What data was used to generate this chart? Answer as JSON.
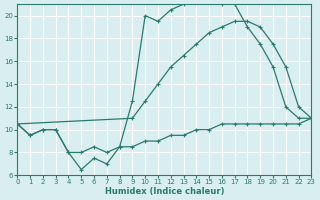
{
  "xlabel": "Humidex (Indice chaleur)",
  "xlim": [
    0,
    23
  ],
  "ylim": [
    6,
    21
  ],
  "yticks": [
    6,
    8,
    10,
    12,
    14,
    16,
    18,
    20
  ],
  "xticks": [
    0,
    1,
    2,
    3,
    4,
    5,
    6,
    7,
    8,
    9,
    10,
    11,
    12,
    13,
    14,
    15,
    16,
    17,
    18,
    19,
    20,
    21,
    22,
    23
  ],
  "line_color": "#2a7a6f",
  "bg_color": "#d8eef0",
  "grid_color": "#ffffff",
  "line1_x": [
    0,
    1,
    2,
    3,
    4,
    5,
    6,
    7,
    8,
    9,
    10,
    11,
    12,
    13,
    14,
    15,
    16,
    17,
    18,
    19,
    20,
    21,
    22,
    23
  ],
  "line1_y": [
    10.5,
    9.5,
    10.0,
    10.0,
    8.0,
    6.5,
    7.5,
    7.0,
    8.5,
    12.5,
    20.0,
    19.5,
    20.5,
    21.0,
    21.5,
    21.5,
    21.0,
    21.0,
    19.0,
    17.5,
    15.5,
    12.0,
    11.0,
    11.0
  ],
  "line2_x": [
    0,
    9,
    10,
    11,
    12,
    13,
    14,
    15,
    16,
    17,
    18,
    19,
    20,
    21,
    22,
    23
  ],
  "line2_y": [
    10.5,
    11.0,
    12.5,
    14.0,
    15.5,
    16.5,
    17.5,
    18.5,
    19.0,
    19.5,
    19.5,
    19.0,
    17.5,
    15.5,
    12.0,
    11.0
  ],
  "line3_x": [
    0,
    1,
    2,
    3,
    4,
    5,
    6,
    7,
    8,
    9,
    10,
    11,
    12,
    13,
    14,
    15,
    16,
    17,
    18,
    19,
    20,
    21,
    22,
    23
  ],
  "line3_y": [
    10.5,
    9.5,
    10.0,
    10.0,
    8.0,
    8.0,
    8.5,
    8.0,
    8.5,
    8.5,
    9.0,
    9.0,
    9.5,
    9.5,
    10.0,
    10.0,
    10.5,
    10.5,
    10.5,
    10.5,
    10.5,
    10.5,
    10.5,
    11.0
  ]
}
